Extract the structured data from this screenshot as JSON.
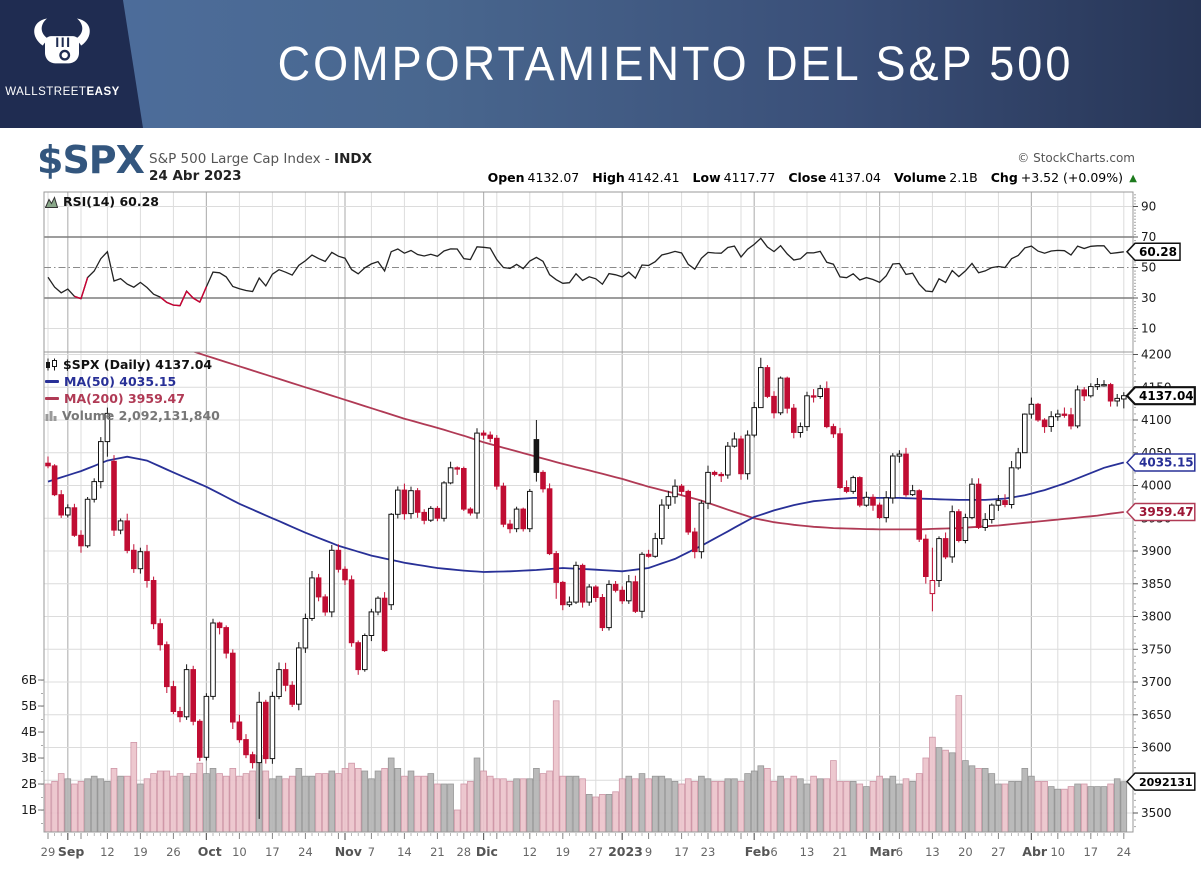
{
  "header": {
    "title": "COMPORTAMIENTO DEL S&P 500",
    "brand_light": "WALLSTREET",
    "brand_bold": "EASY"
  },
  "chart_header": {
    "symbol": "$SPX",
    "index_name": "S&P 500 Large Cap Index -",
    "index_suffix": "INDX",
    "date": "24 Abr 2023",
    "copyright": "© StockCharts.com"
  },
  "ohlc": {
    "items": [
      {
        "label": "Open",
        "value": "4132.07"
      },
      {
        "label": "High",
        "value": "4142.41"
      },
      {
        "label": "Low",
        "value": "4117.77"
      },
      {
        "label": "Close",
        "value": "4137.04"
      },
      {
        "label": "Volume",
        "value": "2.1B"
      },
      {
        "label": "Chg",
        "value": "+3.52 (+0.09%)"
      }
    ],
    "arrow": "▲"
  },
  "panes": {
    "rsi": {
      "label": "RSI(14) 60.28",
      "last_value": 60.28,
      "overbought": 70,
      "oversold": 30,
      "mid": 50
    },
    "price": {
      "legend_symbol": "$SPX (Daily) 4137.04",
      "legend_ma50": "MA(50) 4035.15",
      "legend_ma200": "MA(200) 3959.47",
      "legend_volume": "Volume 2,092,131,840"
    }
  },
  "chart_data": {
    "type": "candlestick",
    "timeframe": "Daily",
    "title": "$SPX Daily with RSI(14), MA(50), MA(200), Volume overlay",
    "ylim_price": [
      3471,
      4196
    ],
    "ylim_rsi": [
      0,
      100
    ],
    "ylim_volume_billions": [
      0,
      6
    ],
    "grid": true,
    "closes": [
      4030,
      3986,
      3955,
      3966,
      3924,
      3908,
      3979,
      4006,
      4067,
      4110,
      3932,
      3946,
      3901,
      3873,
      3899,
      3855,
      3789,
      3757,
      3693,
      3655,
      3647,
      3719,
      3640,
      3585,
      3678,
      3790,
      3783,
      3744,
      3639,
      3612,
      3589,
      3577,
      3669,
      3583,
      3678,
      3719,
      3695,
      3666,
      3752,
      3797,
      3859,
      3830,
      3807,
      3901,
      3872,
      3856,
      3760,
      3719,
      3771,
      3807,
      3828,
      3748,
      3956,
      3993,
      3957,
      3992,
      3959,
      3947,
      3965,
      3950,
      4004,
      4027,
      4026,
      3964,
      3958,
      4080,
      4077,
      4072,
      3999,
      3941,
      3934,
      3964,
      3934,
      3991,
      4020,
      3995,
      3896,
      3852,
      3818,
      3822,
      3878,
      3822,
      3845,
      3829,
      3783,
      3849,
      3840,
      3824,
      3853,
      3808,
      3895,
      3892,
      3919,
      3970,
      3983,
      3999,
      3991,
      3929,
      3899,
      3973,
      4020,
      4017,
      4016,
      4060,
      4071,
      4018,
      4077,
      4119,
      4180,
      4136,
      4111,
      4164,
      4118,
      4081,
      4090,
      4137,
      4136,
      4148,
      4090,
      4079,
      3997,
      3991,
      4012,
      3970,
      3982,
      3970,
      3951,
      3981,
      4045,
      4048,
      3986,
      3992,
      3918,
      3861,
      3855,
      3919,
      3891,
      3960,
      3916,
      3951,
      4002,
      3936,
      3948,
      3970,
      3977,
      3971,
      4027,
      4050,
      4109,
      4124,
      4100,
      4090,
      4105,
      4109,
      4108,
      4091,
      4146,
      4137,
      4151,
      4154,
      4154,
      4129,
      4133,
      4137.04
    ],
    "volumes_billions": [
      2.0,
      2.1,
      2.4,
      2.2,
      2.0,
      2.1,
      2.2,
      2.3,
      2.2,
      2.1,
      2.6,
      2.3,
      2.3,
      3.6,
      2.0,
      2.2,
      2.4,
      2.5,
      2.5,
      2.3,
      2.4,
      2.3,
      2.4,
      2.8,
      2.4,
      2.6,
      2.4,
      2.3,
      2.6,
      2.3,
      2.4,
      2.5,
      3.1,
      2.5,
      2.2,
      2.3,
      2.2,
      2.3,
      2.6,
      2.3,
      2.3,
      2.4,
      2.4,
      2.5,
      2.4,
      2.6,
      2.8,
      2.6,
      2.5,
      2.2,
      2.5,
      2.6,
      3.0,
      2.6,
      2.3,
      2.5,
      2.3,
      2.3,
      2.4,
      2.0,
      2.0,
      2.0,
      1.0,
      2.0,
      2.1,
      3.0,
      2.5,
      2.3,
      2.2,
      2.2,
      2.1,
      2.2,
      2.2,
      2.2,
      2.6,
      2.4,
      2.5,
      5.2,
      2.3,
      2.3,
      2.3,
      2.2,
      1.6,
      1.5,
      1.6,
      1.6,
      1.7,
      2.2,
      2.3,
      2.2,
      2.4,
      2.2,
      2.3,
      2.3,
      2.2,
      2.1,
      2.0,
      2.2,
      2.1,
      2.3,
      2.2,
      2.1,
      2.1,
      2.2,
      2.2,
      2.1,
      2.4,
      2.5,
      2.7,
      2.6,
      2.1,
      2.3,
      2.2,
      2.3,
      2.2,
      2.0,
      2.3,
      2.2,
      2.2,
      2.9,
      2.1,
      2.1,
      2.1,
      2.0,
      1.9,
      2.1,
      2.3,
      2.2,
      2.3,
      2.0,
      2.2,
      2.1,
      2.4,
      3.0,
      3.8,
      3.4,
      3.3,
      3.2,
      5.4,
      2.9,
      2.7,
      2.6,
      2.6,
      2.4,
      2.0,
      2.0,
      2.1,
      2.1,
      2.6,
      2.3,
      2.1,
      2.1,
      1.9,
      1.8,
      1.8,
      1.9,
      2.0,
      2.0,
      1.9,
      1.9,
      1.9,
      2.0,
      2.2,
      2.09
    ],
    "first_open": 4034,
    "open_overrides": {
      "10": 4037,
      "52": 3818,
      "74": 4070,
      "134": 3835,
      "163": 4132.07
    },
    "wick_overrides": {
      "9": [
        4119,
        4044
      ],
      "32": [
        3685,
        3491
      ],
      "52": [
        3958,
        3810
      ],
      "74": [
        4100,
        4006
      ],
      "77": [
        3900,
        3827
      ],
      "108": [
        4195,
        4120
      ],
      "134": [
        3905,
        3808
      ],
      "148": [
        4110,
        4056
      ],
      "163": [
        4142.41,
        4117.77
      ]
    },
    "last_candle_ohlc": {
      "open": 4132.07,
      "high": 4142.41,
      "low": 4117.77,
      "close": 4137.04
    },
    "ma50_anchors": [
      [
        0,
        4006
      ],
      [
        5,
        4022
      ],
      [
        9,
        4038
      ],
      [
        12,
        4044
      ],
      [
        15,
        4038
      ],
      [
        19,
        4020
      ],
      [
        24,
        3998
      ],
      [
        29,
        3972
      ],
      [
        34,
        3950
      ],
      [
        39,
        3928
      ],
      [
        44,
        3908
      ],
      [
        49,
        3893
      ],
      [
        54,
        3882
      ],
      [
        59,
        3874
      ],
      [
        63,
        3870
      ],
      [
        66,
        3868
      ],
      [
        70,
        3869
      ],
      [
        74,
        3871
      ],
      [
        78,
        3874
      ],
      [
        82,
        3872
      ],
      [
        87,
        3869
      ],
      [
        91,
        3874
      ],
      [
        95,
        3888
      ],
      [
        99,
        3908
      ],
      [
        103,
        3930
      ],
      [
        107,
        3952
      ],
      [
        110,
        3962
      ],
      [
        113,
        3970
      ],
      [
        116,
        3976
      ],
      [
        119,
        3979
      ],
      [
        122,
        3981
      ],
      [
        126,
        3981
      ],
      [
        129,
        3981
      ],
      [
        132,
        3980
      ],
      [
        135,
        3979
      ],
      [
        138,
        3978
      ],
      [
        142,
        3978
      ],
      [
        145,
        3980
      ],
      [
        148,
        3985
      ],
      [
        151,
        3993
      ],
      [
        154,
        4003
      ],
      [
        157,
        4015
      ],
      [
        160,
        4027
      ],
      [
        163,
        4035.15
      ]
    ],
    "ma200_anchors": [
      [
        21,
        4208
      ],
      [
        24,
        4198
      ],
      [
        29,
        4182
      ],
      [
        34,
        4166
      ],
      [
        39,
        4150
      ],
      [
        44,
        4134
      ],
      [
        49,
        4118
      ],
      [
        54,
        4102
      ],
      [
        59,
        4088
      ],
      [
        63,
        4076
      ],
      [
        66,
        4066
      ],
      [
        70,
        4055
      ],
      [
        74,
        4044
      ],
      [
        78,
        4033
      ],
      [
        82,
        4023
      ],
      [
        87,
        4010
      ],
      [
        91,
        3998
      ],
      [
        95,
        3988
      ],
      [
        99,
        3977
      ],
      [
        103,
        3963
      ],
      [
        107,
        3950
      ],
      [
        110,
        3944
      ],
      [
        113,
        3940
      ],
      [
        116,
        3937
      ],
      [
        119,
        3935
      ],
      [
        122,
        3934
      ],
      [
        126,
        3933
      ],
      [
        129,
        3933
      ],
      [
        132,
        3933
      ],
      [
        135,
        3934
      ],
      [
        138,
        3935
      ],
      [
        141,
        3937
      ],
      [
        144,
        3939
      ],
      [
        147,
        3942
      ],
      [
        150,
        3945
      ],
      [
        153,
        3948
      ],
      [
        156,
        3951
      ],
      [
        159,
        3954
      ],
      [
        161,
        3957
      ],
      [
        163,
        3959.47
      ]
    ],
    "rsi_period": 14,
    "rsi_last": 60.28,
    "rsi_seed": [
      8.5,
      11
    ],
    "price_axis_ticks": [
      4200,
      4150,
      4100,
      4050,
      4000,
      3950,
      3900,
      3850,
      3800,
      3750,
      3700,
      3650,
      3600,
      3550,
      3500
    ],
    "rsi_axis_ticks": [
      90,
      70,
      50,
      30,
      10
    ],
    "volume_axis_ticks": [
      {
        "label": "6B",
        "value": 6
      },
      {
        "label": "5B",
        "value": 5
      },
      {
        "label": "4B",
        "value": 4
      },
      {
        "label": "3B",
        "value": 3
      },
      {
        "label": "2B",
        "value": 2
      },
      {
        "label": "1B",
        "value": 1
      }
    ],
    "x_ticks": [
      {
        "t": "29",
        "i": 0
      },
      {
        "t": "Sep",
        "i": 3.5,
        "b": 1
      },
      {
        "t": "12",
        "i": 9
      },
      {
        "t": "19",
        "i": 14
      },
      {
        "t": "26",
        "i": 19
      },
      {
        "t": "Oct",
        "i": 24.5,
        "b": 1
      },
      {
        "t": "10",
        "i": 29
      },
      {
        "t": "17",
        "i": 34
      },
      {
        "t": "24",
        "i": 39
      },
      {
        "t": "Nov",
        "i": 45.5,
        "b": 1
      },
      {
        "t": "7",
        "i": 49
      },
      {
        "t": "14",
        "i": 54
      },
      {
        "t": "21",
        "i": 59
      },
      {
        "t": "28",
        "i": 63
      },
      {
        "t": "Dic",
        "i": 66.5,
        "b": 1
      },
      {
        "t": "12",
        "i": 73
      },
      {
        "t": "19",
        "i": 78
      },
      {
        "t": "27",
        "i": 83
      },
      {
        "t": "2023",
        "i": 87.5,
        "b": 1
      },
      {
        "t": "9",
        "i": 91
      },
      {
        "t": "17",
        "i": 96
      },
      {
        "t": "23",
        "i": 100
      },
      {
        "t": "Feb",
        "i": 107.5,
        "b": 1
      },
      {
        "t": "6",
        "i": 110
      },
      {
        "t": "13",
        "i": 115
      },
      {
        "t": "21",
        "i": 120
      },
      {
        "t": "Mar",
        "i": 126.5,
        "b": 1
      },
      {
        "t": "6",
        "i": 129
      },
      {
        "t": "13",
        "i": 134
      },
      {
        "t": "20",
        "i": 139
      },
      {
        "t": "27",
        "i": 144
      },
      {
        "t": "Abr",
        "i": 149.5,
        "b": 1
      },
      {
        "t": "10",
        "i": 153
      },
      {
        "t": "17",
        "i": 158
      },
      {
        "t": "24",
        "i": 163
      }
    ],
    "week_start_indices": [
      0,
      5,
      9,
      14,
      19,
      24,
      29,
      34,
      39,
      44,
      49,
      54,
      59,
      63,
      68,
      73,
      78,
      83,
      87,
      91,
      96,
      100,
      105,
      110,
      115,
      120,
      124,
      129,
      134,
      139,
      144,
      149,
      153,
      158,
      163
    ],
    "month_start_indices": [
      3,
      24,
      45,
      66,
      87,
      107,
      126,
      149
    ],
    "axis_value_boxes": [
      {
        "text": "60.28",
        "value": 60.28,
        "pane": "rsi",
        "style": "black"
      },
      {
        "text": "4137.04",
        "value": 4137.04,
        "pane": "price",
        "style": "black-bold"
      },
      {
        "text": "4035.15",
        "value": 4035.15,
        "pane": "price",
        "style": "blue"
      },
      {
        "text": "3959.47",
        "value": 3959.47,
        "pane": "price",
        "style": "red"
      },
      {
        "text": "2092131",
        "value": 2.092,
        "pane": "volume",
        "style": "black"
      }
    ],
    "colors": {
      "candle_black": "#151515",
      "candle_red": "#c00d33",
      "candle_fill_up": "#ffffff",
      "ma50": "#283097",
      "ma200": "#b03a55",
      "vol_up_fill": "#b5b5b5",
      "vol_up_stroke": "#8f8f8f",
      "vol_down_fill": "#ecc4cc",
      "vol_down_stroke": "#cc8fa0",
      "rsi_line": "#222222",
      "rsi_below": "#cc0033",
      "grid": "#dcdcdc",
      "grid_month": "#b7b7b7",
      "pane_border": "#999999",
      "level_line": "#7d7d7d",
      "level_mid": "#8a8a8a",
      "axis_text": "#1a1a1a",
      "date_text": "#666666",
      "date_text_bold": "#555555",
      "green": "#1d7a1d",
      "spx_blue": "#33567e",
      "header_blue": "#49678f",
      "header_navy": "#1f2c51"
    }
  }
}
